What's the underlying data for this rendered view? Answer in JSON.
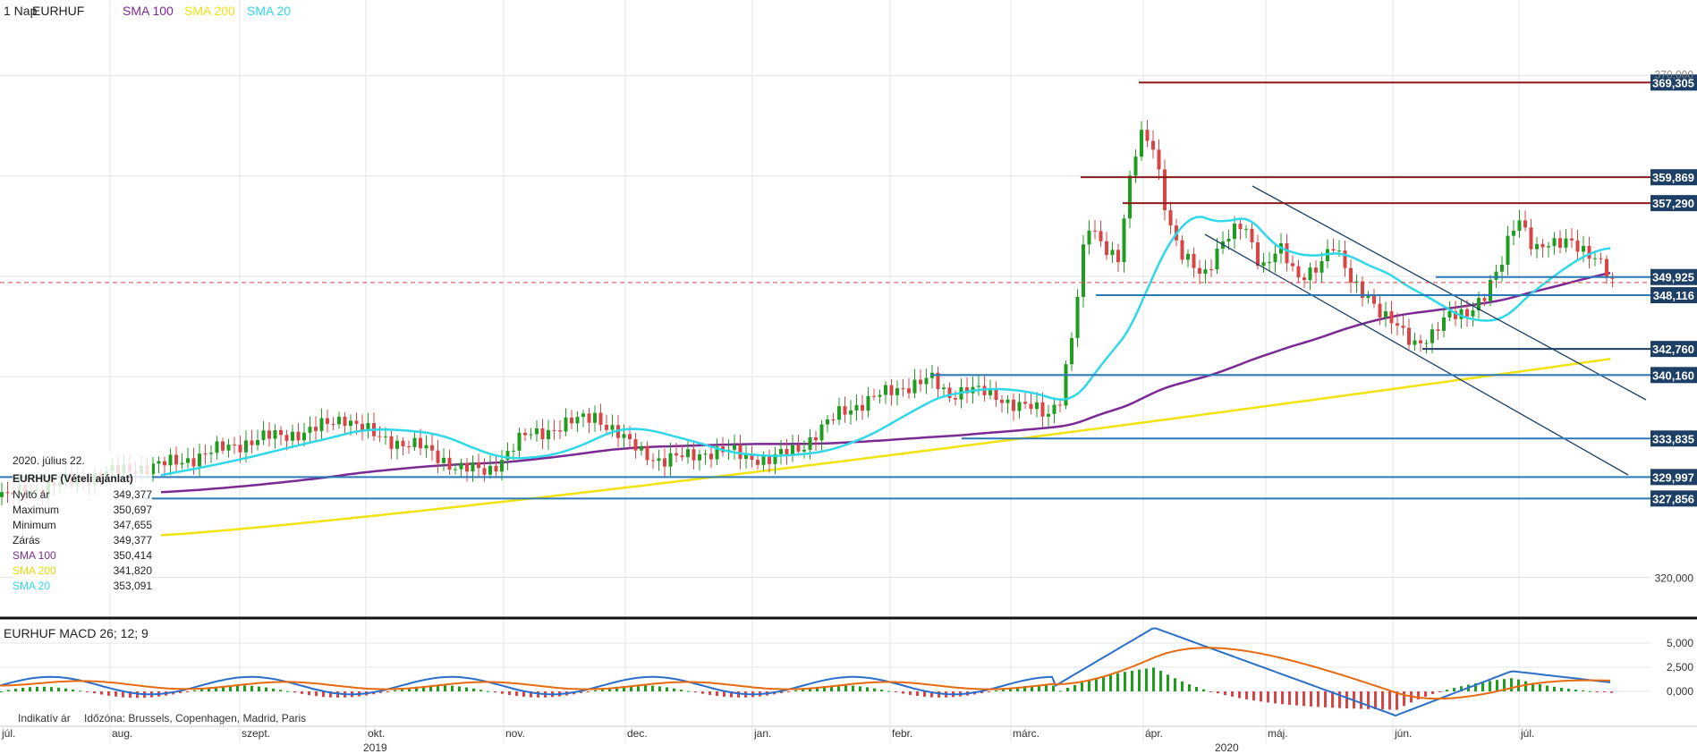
{
  "header": {
    "period": "1 Nap",
    "symbol": "EURHUF",
    "legend": [
      {
        "label": "SMA 100",
        "color": "#7b2a93"
      },
      {
        "label": "SMA 200",
        "color": "#f2e30f"
      },
      {
        "label": "SMA 20",
        "color": "#2fd8e8"
      }
    ]
  },
  "info_panel": {
    "date": "2020. július 22.",
    "instrument": "EURHUF (Vételi ajánlat)",
    "rows": [
      {
        "label": "Nyitó ár",
        "value": "349,377"
      },
      {
        "label": "Maximum",
        "value": "350,697"
      },
      {
        "label": "Minimum",
        "value": "347,655"
      },
      {
        "label": "Zárás",
        "value": "349,377"
      },
      {
        "label": "SMA 100",
        "value": "350,414",
        "color": "#7b2a93"
      },
      {
        "label": "SMA 200",
        "value": "341,820",
        "color": "#f2e30f"
      },
      {
        "label": "SMA 20",
        "value": "353,091",
        "color": "#2fd8e8"
      }
    ]
  },
  "macd": {
    "title": "EURHUF  MACD 26; 12; 9"
  },
  "footer": {
    "indicative": "Indikatív ár",
    "timezone": "Időzóna: Brussels, Copenhagen, Madrid, Paris"
  },
  "chart_data": {
    "type": "candlestick",
    "y_axis_ticks": [
      "320,000",
      "370,000"
    ],
    "x_axis_months": [
      "júl.",
      "aug.",
      "szept.",
      "okt.",
      "nov.",
      "dec.",
      "jan.",
      "febr.",
      "márc.",
      "ápr.",
      "máj.",
      "jún.",
      "júl."
    ],
    "x_axis_years": [
      "2019",
      "2020"
    ],
    "price_levels": [
      {
        "value": 369.305,
        "label": "369,305",
        "color": "#8b1a1a"
      },
      {
        "value": 359.869,
        "label": "359,869",
        "color": "#8b1a1a"
      },
      {
        "value": 357.29,
        "label": "357,290",
        "color": "#8b1a1a"
      },
      {
        "value": 349.925,
        "label": "349,925",
        "color": "#2a7ab8"
      },
      {
        "value": 348.116,
        "label": "348,116",
        "color": "#2a7ab8"
      },
      {
        "value": 342.76,
        "label": "342,760",
        "color": "#1d3f66"
      },
      {
        "value": 340.16,
        "label": "340,160",
        "color": "#2a7ab8"
      },
      {
        "value": 333.835,
        "label": "333,835",
        "color": "#2a7ab8"
      },
      {
        "value": 329.997,
        "label": "329,997",
        "color": "#2a7ab8"
      },
      {
        "value": 327.856,
        "label": "327,856",
        "color": "#2a7ab8"
      }
    ],
    "current_price": 349.377,
    "macd_axis_ticks": [
      "5,000",
      "2,500",
      "0,000"
    ],
    "colors": {
      "up": "#1f9d1f",
      "down": "#d94444",
      "sma20": "#2fd8e8",
      "sma100": "#7b2a93",
      "sma200": "#f2e30f",
      "macd": "#2a6fc9",
      "signal": "#e86a10",
      "grid": "#e4e4e4"
    }
  }
}
